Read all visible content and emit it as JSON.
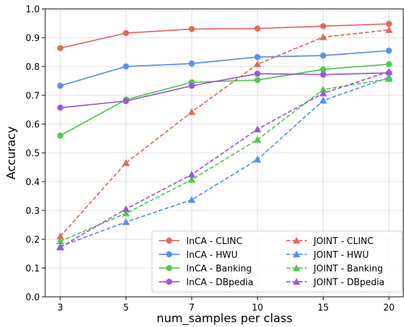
{
  "chart_data": {
    "type": "line",
    "xlabel": "num_samples per class",
    "ylabel": "Accuracy",
    "x_categories": [
      "3",
      "5",
      "7",
      "10",
      "15",
      "20"
    ],
    "ylim": [
      0.0,
      1.0
    ],
    "y_ticks": [
      "0.0",
      "0.1",
      "0.2",
      "0.3",
      "0.4",
      "0.5",
      "0.6",
      "0.7",
      "0.8",
      "0.9",
      "1.0"
    ],
    "grid": true,
    "legend_position": "bottom-right",
    "series": [
      {
        "name": "InCA - CLINC",
        "color": "#e06b5f",
        "style": "solid",
        "marker": "circle",
        "values": [
          0.864,
          0.916,
          0.93,
          0.932,
          0.94,
          0.948
        ]
      },
      {
        "name": "InCA - HWU",
        "color": "#5a8fef",
        "style": "solid",
        "marker": "circle",
        "values": [
          0.733,
          0.8,
          0.81,
          0.833,
          0.838,
          0.855
        ]
      },
      {
        "name": "InCA - Banking",
        "color": "#4ccc4c",
        "style": "solid",
        "marker": "circle",
        "values": [
          0.56,
          0.685,
          0.745,
          0.753,
          0.79,
          0.808
        ]
      },
      {
        "name": "InCA - DBpedia",
        "color": "#9b59d6",
        "style": "solid",
        "marker": "circle",
        "values": [
          0.657,
          0.68,
          0.733,
          0.775,
          0.772,
          0.778
        ]
      },
      {
        "name": "JOINT - CLINC",
        "color": "#e06b5f",
        "style": "dashed",
        "marker": "triangle",
        "values": [
          0.21,
          0.465,
          0.642,
          0.808,
          0.902,
          0.927
        ]
      },
      {
        "name": "JOINT - HWU",
        "color": "#5a8fef",
        "style": "dashed",
        "marker": "triangle",
        "values": [
          0.175,
          0.26,
          0.337,
          0.477,
          0.682,
          0.762
        ]
      },
      {
        "name": "JOINT - Banking",
        "color": "#4ccc4c",
        "style": "dashed",
        "marker": "triangle",
        "values": [
          0.193,
          0.29,
          0.407,
          0.546,
          0.72,
          0.757
        ]
      },
      {
        "name": "JOINT - DBpedia",
        "color": "#9b59d6",
        "style": "dashed",
        "marker": "triangle",
        "values": [
          0.172,
          0.305,
          0.425,
          0.582,
          0.707,
          0.782
        ]
      }
    ]
  }
}
